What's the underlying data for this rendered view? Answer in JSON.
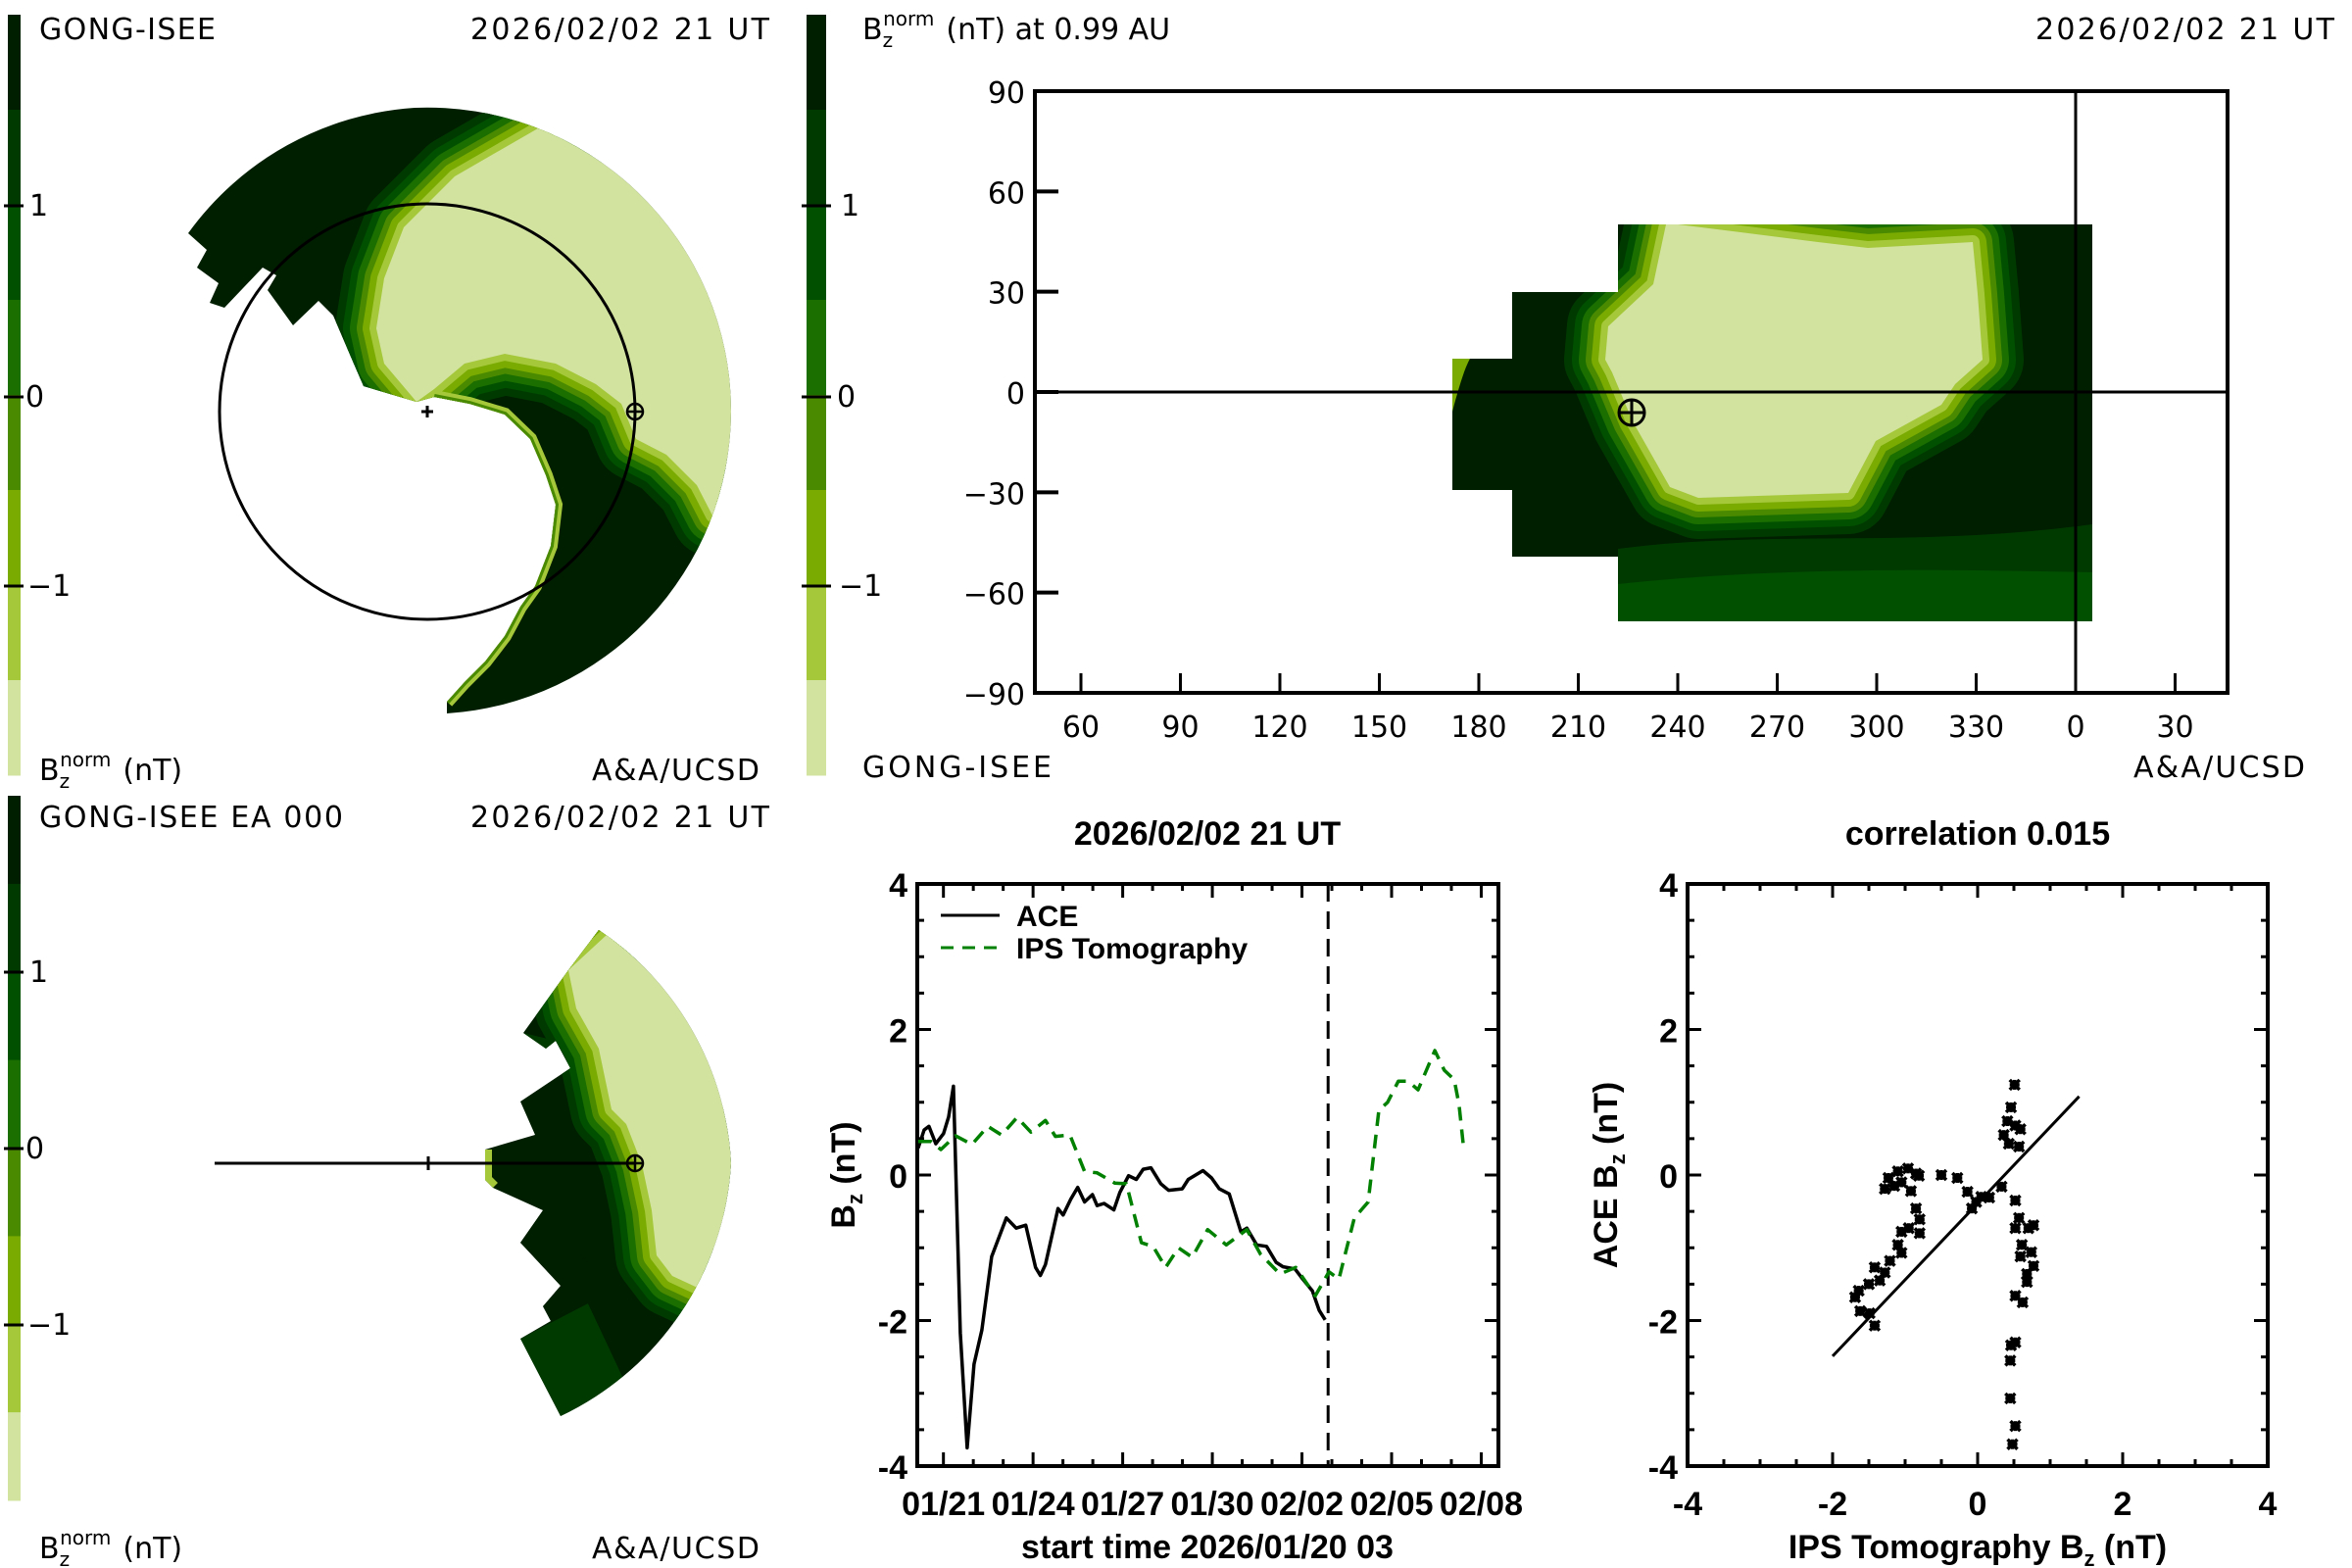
{
  "colormap": {
    "bands": [
      "#001e00",
      "#003a00",
      "#005000",
      "#1b6e00",
      "#4a8a00",
      "#7aab00",
      "#a5c83b",
      "#d2e3a0"
    ],
    "band_edges_nT": [
      2,
      1.5,
      1,
      0.5,
      0,
      -0.5,
      -1,
      -1.5,
      -2
    ],
    "tick_labels": [
      "1",
      "0",
      "−1"
    ]
  },
  "panel_ecliptic": {
    "source": "GONG-ISEE",
    "timestamp": "2026/02/02 21 UT",
    "credit": "A&A/UCSD",
    "unit_label": {
      "base": "B",
      "sub": "z",
      "sup": "norm",
      "unit": "(nT)"
    }
  },
  "panel_map": {
    "title": {
      "base": "B",
      "sub": "z",
      "sup": "norm",
      "rest": "(nT) at 0.99 AU"
    },
    "timestamp": "2026/02/02 21 UT",
    "source": "GONG-ISEE",
    "credit": "A&A/UCSD",
    "lat_ticks": [
      "90",
      "60",
      "30",
      "0",
      "−30",
      "−60",
      "−90"
    ],
    "lon_ticks": [
      "60",
      "90",
      "120",
      "150",
      "180",
      "210",
      "240",
      "270",
      "300",
      "330",
      "0",
      "30"
    ],
    "earth_marker": "earth-symbol"
  },
  "panel_meridional": {
    "source": "GONG-ISEE EA 000",
    "timestamp": "2026/02/02 21 UT",
    "credit": "A&A/UCSD",
    "unit_label": {
      "base": "B",
      "sub": "z",
      "sup": "norm",
      "unit": "(nT)"
    }
  },
  "chart_data": [
    {
      "type": "line",
      "title": "2026/02/02 21 UT",
      "xlabel": "start time 2026/01/20 03",
      "ylabel": {
        "base": "B",
        "sub": "z",
        "rest": " (nT)"
      },
      "x_unit": "days since 2026/01/20 03",
      "xlim": [
        0,
        19.45
      ],
      "ylim": [
        -4,
        4
      ],
      "yticks": [
        4,
        2,
        0,
        -2,
        -4
      ],
      "ytick_labels": [
        "4",
        "2",
        "0",
        "-2",
        "-4"
      ],
      "xticks": [
        0.875,
        3.875,
        6.875,
        9.875,
        12.875,
        15.875,
        18.875
      ],
      "xtick_labels": [
        "01/21",
        "01/24",
        "01/27",
        "01/30",
        "02/02",
        "02/05",
        "02/08"
      ],
      "current_time_marker": 13.75,
      "legend": {
        "position": "top-left",
        "entries": [
          "ACE",
          "IPS Tomography"
        ]
      },
      "series": [
        {
          "name": "ACE",
          "color": "#000000",
          "style": "solid",
          "x": [
            0.03,
            0.23,
            0.39,
            0.62,
            0.88,
            1.05,
            1.21,
            1.28,
            1.44,
            1.67,
            1.9,
            2.16,
            2.49,
            2.98,
            3.31,
            3.63,
            3.96,
            4.12,
            4.29,
            4.71,
            4.88,
            5.14,
            5.37,
            5.6,
            5.86,
            6.02,
            6.25,
            6.58,
            6.78,
            7.07,
            7.33,
            7.56,
            7.82,
            8.15,
            8.41,
            8.87,
            9.07,
            9.56,
            9.85,
            10.11,
            10.44,
            10.83,
            11.03,
            11.36,
            11.69,
            12.01,
            12.24,
            12.64,
            12.9,
            13.22,
            13.45,
            13.65
          ],
          "y": [
            0.37,
            0.62,
            0.67,
            0.43,
            0.57,
            0.8,
            1.22,
            0.2,
            -2.17,
            -3.75,
            -2.6,
            -2.13,
            -1.12,
            -0.59,
            -0.73,
            -0.69,
            -1.27,
            -1.38,
            -1.23,
            -0.46,
            -0.55,
            -0.33,
            -0.17,
            -0.37,
            -0.27,
            -0.42,
            -0.39,
            -0.48,
            -0.24,
            -0.01,
            -0.06,
            0.08,
            0.1,
            -0.12,
            -0.21,
            -0.19,
            -0.06,
            0.06,
            -0.04,
            -0.19,
            -0.26,
            -0.78,
            -0.73,
            -0.96,
            -0.98,
            -1.2,
            -1.26,
            -1.29,
            -1.43,
            -1.59,
            -1.86,
            -1.99
          ]
        },
        {
          "name": "IPS Tomography",
          "color": "#008000",
          "style": "dashed",
          "x": [
            0.03,
            0.46,
            0.79,
            1.28,
            1.83,
            2.36,
            2.82,
            3.34,
            3.8,
            4.29,
            4.62,
            5.11,
            5.6,
            6.02,
            6.61,
            7.0,
            7.5,
            7.89,
            8.31,
            8.74,
            9.2,
            9.72,
            10.34,
            11.03,
            11.49,
            12.14,
            12.67,
            13.32,
            13.78,
            14.11,
            14.63,
            15.09,
            15.45,
            15.74,
            16.1,
            16.43,
            16.76,
            17.32,
            17.64,
            17.97,
            18.13,
            18.3
          ],
          "y": [
            0.46,
            0.46,
            0.35,
            0.54,
            0.42,
            0.67,
            0.55,
            0.79,
            0.59,
            0.75,
            0.53,
            0.55,
            0.05,
            0.03,
            -0.11,
            -0.12,
            -0.93,
            -0.98,
            -1.27,
            -1.0,
            -1.13,
            -0.75,
            -0.96,
            -0.75,
            -1.09,
            -1.36,
            -1.27,
            -1.66,
            -1.33,
            -1.43,
            -0.59,
            -0.37,
            0.89,
            1.0,
            1.29,
            1.29,
            1.17,
            1.71,
            1.44,
            1.31,
            0.97,
            0.32
          ]
        }
      ]
    },
    {
      "type": "scatter",
      "title": "correlation 0.015",
      "xlabel": {
        "base": "IPS Tomography B",
        "sub": "z",
        "rest": " (nT)"
      },
      "ylabel": {
        "base": "ACE B",
        "sub": "z",
        "rest": " (nT)"
      },
      "xlim": [
        -4,
        4
      ],
      "ylim": [
        -4,
        4
      ],
      "xticks": [
        -4,
        -2,
        0,
        2,
        4
      ],
      "xtick_labels": [
        "-4",
        "-2",
        "0",
        "2",
        "4"
      ],
      "yticks": [
        4,
        2,
        0,
        -2,
        -4
      ],
      "ytick_labels": [
        "4",
        "2",
        "0",
        "-2",
        "-4"
      ],
      "fit_line": {
        "x": [
          -2.0,
          1.4
        ],
        "y": [
          -2.49,
          1.08
        ]
      },
      "points": [
        [
          0.51,
          1.24
        ],
        [
          0.46,
          0.93
        ],
        [
          0.41,
          0.74
        ],
        [
          0.59,
          0.63
        ],
        [
          0.36,
          0.55
        ],
        [
          0.57,
          0.39
        ],
        [
          0.43,
          0.43
        ],
        [
          0.52,
          0.68
        ],
        [
          -0.96,
          0.09
        ],
        [
          -1.23,
          -0.04
        ],
        [
          -0.81,
          -0.01
        ],
        [
          -1.28,
          -0.19
        ],
        [
          -1.05,
          -0.1
        ],
        [
          -0.92,
          -0.22
        ],
        [
          -1.1,
          0.05
        ],
        [
          -0.85,
          0.02
        ],
        [
          -1.15,
          -0.15
        ],
        [
          -0.5,
          0.0
        ],
        [
          -0.28,
          -0.04
        ],
        [
          -0.14,
          -0.23
        ],
        [
          -0.02,
          -0.37
        ],
        [
          -0.08,
          -0.46
        ],
        [
          0.16,
          -0.31
        ],
        [
          0.33,
          -0.16
        ],
        [
          0.05,
          -0.3
        ],
        [
          0.52,
          -0.35
        ],
        [
          0.57,
          -0.59
        ],
        [
          0.7,
          -0.73
        ],
        [
          0.52,
          -0.73
        ],
        [
          0.77,
          -0.69
        ],
        [
          0.61,
          -0.96
        ],
        [
          0.74,
          -1.06
        ],
        [
          0.59,
          -1.12
        ],
        [
          0.77,
          -1.25
        ],
        [
          0.68,
          -1.36
        ],
        [
          0.68,
          -1.47
        ],
        [
          0.52,
          -1.66
        ],
        [
          0.62,
          -1.75
        ],
        [
          0.46,
          -2.34
        ],
        [
          0.52,
          -2.3
        ],
        [
          0.45,
          -2.55
        ],
        [
          0.45,
          -3.07
        ],
        [
          0.52,
          -3.45
        ],
        [
          0.48,
          -3.7
        ],
        [
          -0.85,
          -0.46
        ],
        [
          -0.8,
          -0.61
        ],
        [
          -0.95,
          -0.73
        ],
        [
          -1.05,
          -0.78
        ],
        [
          -0.8,
          -0.8
        ],
        [
          -1.1,
          -0.96
        ],
        [
          -1.05,
          -1.07
        ],
        [
          -1.21,
          -1.18
        ],
        [
          -1.42,
          -1.27
        ],
        [
          -1.28,
          -1.34
        ],
        [
          -1.35,
          -1.45
        ],
        [
          -1.5,
          -1.5
        ],
        [
          -1.64,
          -1.59
        ],
        [
          -1.69,
          -1.68
        ],
        [
          -1.62,
          -1.87
        ],
        [
          -1.49,
          -1.9
        ],
        [
          -1.42,
          -2.07
        ]
      ]
    }
  ]
}
